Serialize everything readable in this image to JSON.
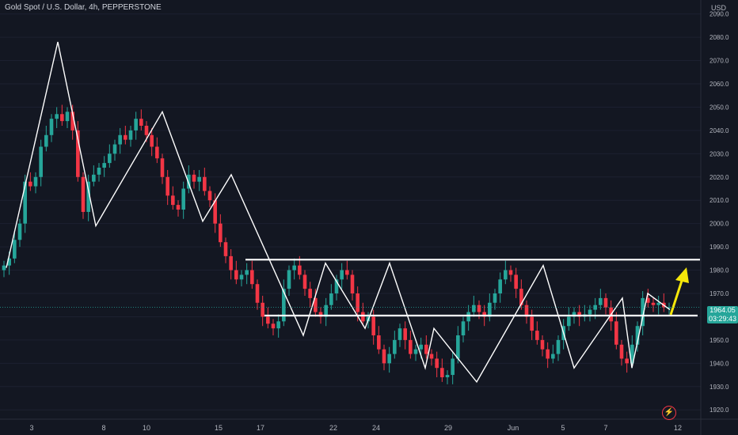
{
  "header": {
    "symbol_title": "Gold Spot / U.S. Dollar, 4h, PEPPERSTONE",
    "currency": "USD"
  },
  "last_price": {
    "value": "1964.05",
    "countdown": "03:29:43"
  },
  "icons": {
    "alert": "lightning-icon"
  },
  "colors": {
    "background": "#131722",
    "up": "#26a69a",
    "down": "#f23645",
    "lines": "#ffffff",
    "arrow": "#f5e70a"
  },
  "chart_data": {
    "type": "candlestick",
    "title": "Gold Spot / U.S. Dollar, 4h, PEPPERSTONE",
    "y_unit": "USD",
    "ylim": [
      1916,
      2096
    ],
    "y_ticks": [
      1920,
      1930,
      1940,
      1950,
      1960,
      1970,
      1980,
      1990,
      2000,
      2010,
      2020,
      2030,
      2040,
      2050,
      2060,
      2070,
      2080,
      2090
    ],
    "x_ticks": [
      "3",
      "8",
      "10",
      "15",
      "17",
      "22",
      "24",
      "29",
      "Jun",
      "5",
      "7",
      "12"
    ],
    "horizontal_levels": [
      {
        "name": "resistance",
        "value": 1984.5
      },
      {
        "name": "support",
        "value": 1960.5
      }
    ],
    "zigzag": [
      1981,
      2078,
      1999,
      2048,
      2001,
      2021,
      1952,
      1983,
      1955,
      1983,
      1938,
      1955,
      1932,
      1982,
      1938,
      1968,
      1938,
      1970,
      1963
    ],
    "candles_close": [
      1982,
      1985,
      1993,
      2000,
      2018,
      2016,
      2020,
      2033,
      2038,
      2045,
      2047,
      2044,
      2048,
      2040,
      2020,
      2005,
      2018,
      2021,
      2024,
      2026,
      2030,
      2034,
      2038,
      2036,
      2040,
      2045,
      2042,
      2038,
      2033,
      2028,
      2020,
      2012,
      2008,
      2006,
      2015,
      2021,
      2018,
      2020,
      2014,
      2010,
      2000,
      1992,
      1986,
      1980,
      1976,
      1978,
      1980,
      1974,
      1966,
      1960,
      1957,
      1955,
      1958,
      1972,
      1980,
      1982,
      1978,
      1972,
      1968,
      1962,
      1960,
      1965,
      1970,
      1976,
      1980,
      1978,
      1970,
      1962,
      1958,
      1960,
      1952,
      1946,
      1940,
      1944,
      1950,
      1955,
      1950,
      1944,
      1946,
      1948,
      1944,
      1942,
      1938,
      1934,
      1935,
      1942,
      1952,
      1958,
      1962,
      1965,
      1962,
      1960,
      1966,
      1970,
      1976,
      1980,
      1978,
      1972,
      1965,
      1960,
      1954,
      1950,
      1946,
      1942,
      1944,
      1950,
      1956,
      1960,
      1962,
      1960,
      1961,
      1963,
      1965,
      1968,
      1964,
      1958,
      1948,
      1942,
      1940,
      1948,
      1956,
      1968,
      1966,
      1965,
      1966,
      1964,
      1964.05
    ]
  }
}
